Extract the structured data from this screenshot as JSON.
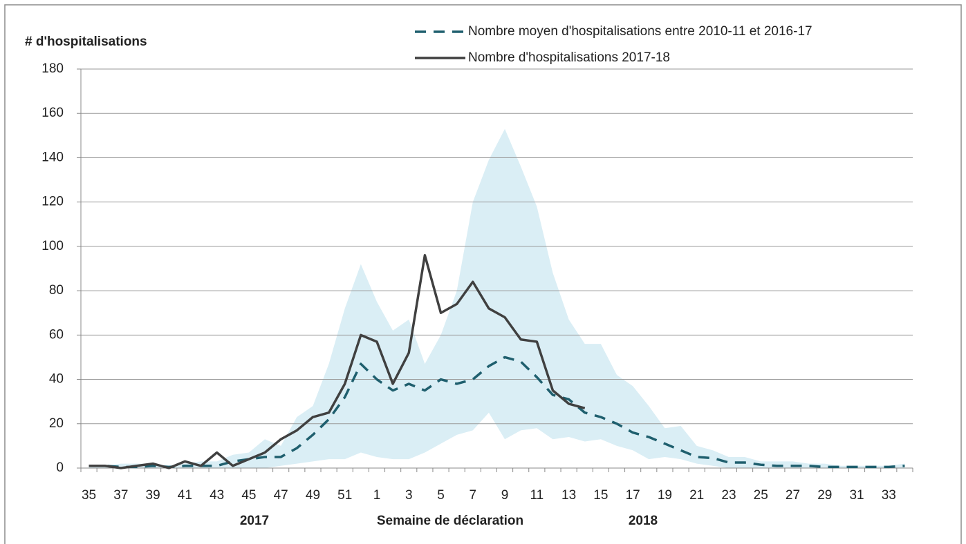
{
  "chart_data": {
    "type": "line",
    "y_label": "# d'hospitalisations",
    "x_label": "Semaine de déclaration",
    "annotations": [
      "2017",
      "2018"
    ],
    "categories": [
      35,
      null,
      37,
      null,
      39,
      null,
      41,
      null,
      43,
      null,
      45,
      null,
      47,
      null,
      49,
      null,
      51,
      null,
      1,
      null,
      3,
      null,
      5,
      null,
      7,
      null,
      9,
      null,
      11,
      null,
      13,
      null,
      15,
      null,
      17,
      null,
      19,
      null,
      21,
      null,
      23,
      null,
      25,
      null,
      27,
      null,
      29,
      null,
      31,
      null,
      33,
      null
    ],
    "band": {
      "color": "#daeef5",
      "upper": [
        1,
        1,
        2,
        2,
        2,
        1,
        2,
        3,
        3,
        6,
        7,
        13,
        10,
        23,
        28,
        47,
        72,
        92,
        75,
        62,
        67,
        47,
        60,
        80,
        120,
        139,
        153,
        136,
        118,
        88,
        67,
        56,
        56,
        42,
        37,
        28,
        18,
        19,
        10,
        8,
        5,
        5,
        3,
        3,
        3,
        2,
        2,
        1,
        1,
        1,
        1,
        2
      ],
      "lower": [
        0,
        0,
        0,
        0,
        0,
        0,
        0,
        0,
        0,
        0,
        0,
        0,
        1,
        2,
        3,
        4,
        4,
        7,
        5,
        4,
        4,
        7,
        11,
        15,
        17,
        25,
        13,
        17,
        18,
        13,
        14,
        12,
        13,
        10,
        8,
        4,
        5,
        4,
        2,
        1,
        0,
        0,
        0,
        0,
        0,
        0,
        0,
        0,
        0,
        0,
        0,
        0
      ]
    },
    "series": [
      {
        "name": "Nombre moyen d'hospitalisations entre 2010-11 et 2016-17",
        "color": "#1f5f6e",
        "dashed": true,
        "values": [
          1,
          1,
          0.5,
          0.5,
          1,
          0.5,
          1,
          1,
          1,
          3,
          4,
          5,
          5,
          9,
          15,
          22,
          32,
          47,
          40,
          35,
          38,
          35,
          40,
          38,
          40,
          46,
          50,
          48,
          41,
          33,
          31,
          25,
          23,
          20,
          16,
          14,
          11,
          8,
          5,
          4.5,
          2.5,
          2.5,
          1.5,
          1,
          1,
          1,
          0.5,
          0.5,
          0.5,
          0.5,
          0.5,
          1
        ]
      },
      {
        "name": "Nombre d'hospitalisations 2017-18",
        "color": "#404040",
        "dashed": false,
        "values": [
          1,
          1,
          0,
          1,
          2,
          0,
          3,
          1,
          7,
          1,
          4,
          7,
          13,
          17,
          23,
          25,
          38,
          60,
          57,
          38,
          52,
          96,
          70,
          74,
          84,
          72,
          68,
          58,
          57,
          35,
          29,
          27,
          null,
          null,
          null,
          null,
          null,
          null,
          null,
          null,
          null,
          null,
          null,
          null,
          null,
          null,
          null,
          null,
          null,
          null,
          null,
          null
        ]
      }
    ],
    "ylim": [
      0,
      180
    ],
    "yticks": [
      0,
      20,
      40,
      60,
      80,
      100,
      120,
      140,
      160,
      180
    ],
    "grid": true,
    "legend": "top-right"
  }
}
